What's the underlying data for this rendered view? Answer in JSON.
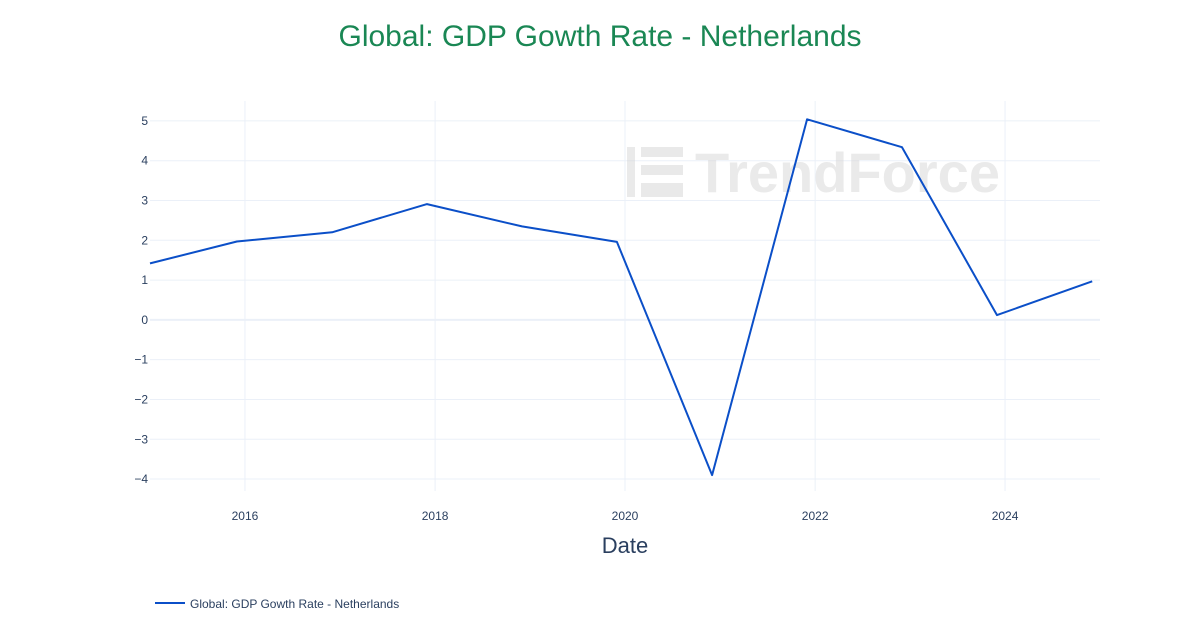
{
  "chart_data": {
    "type": "line",
    "title": "Global: GDP Gowth Rate - Netherlands",
    "xlabel": "Date",
    "ylabel": "",
    "x": [
      "2015-01-01",
      "2015-12-01",
      "2016-12-01",
      "2017-12-01",
      "2018-12-01",
      "2019-12-01",
      "2020-12-01",
      "2021-12-01",
      "2022-12-01",
      "2023-12-01",
      "2024-12-01"
    ],
    "series": [
      {
        "name": "Global: GDP Gowth Rate - Netherlands",
        "color": "#0b4fc8",
        "values": [
          1.42,
          1.97,
          2.2,
          2.91,
          2.35,
          1.96,
          -3.9,
          5.04,
          4.34,
          0.12,
          0.97
        ]
      }
    ],
    "xlim": [
      "2015-01-01",
      "2024-12-31"
    ],
    "ylim": [
      -4.3,
      5.5
    ],
    "x_ticks": [
      "2016",
      "2018",
      "2020",
      "2022",
      "2024"
    ],
    "y_ticks": [
      "5",
      "4",
      "3",
      "2",
      "1",
      "0",
      "−1",
      "−2",
      "−3",
      "−4"
    ],
    "y_tick_values": [
      5,
      4,
      3,
      2,
      1,
      0,
      -1,
      -2,
      -3,
      -4
    ],
    "grid": true,
    "legend": "bottom-left"
  },
  "watermark": {
    "text": "TrendForce"
  },
  "colors": {
    "title": "#1a8754",
    "line": "#0b4fc8",
    "grid": "#ebf0f8",
    "text": "#2a3f5f"
  }
}
